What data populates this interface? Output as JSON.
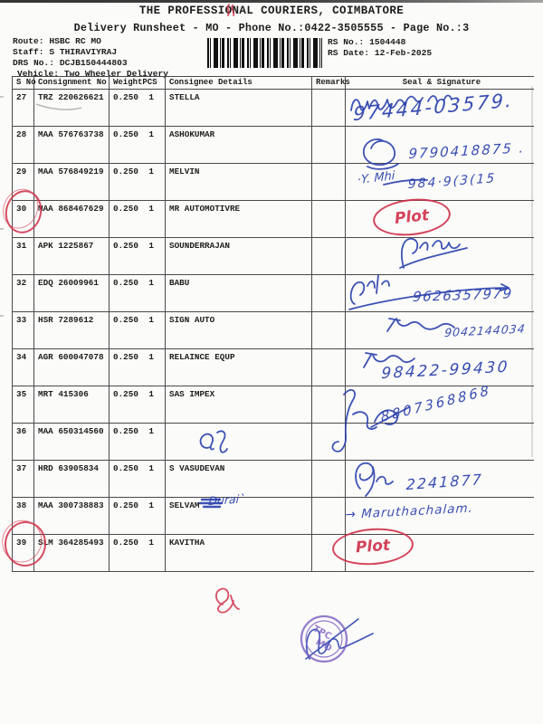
{
  "document": {
    "title": "THE PROFESSIONAL COURIERS, COIMBATORE",
    "subtitle": "Delivery Runsheet - MO - Phone No.:0422-3505555 - Page No.:3",
    "info_left": [
      {
        "label": "Route:",
        "value": "HSBC RC MO"
      },
      {
        "label": "Staff:",
        "value": "S THIRAVIYRAJ"
      },
      {
        "label": "DRS No.:",
        "value": "DCJB150444803"
      },
      {
        "label": "Vehicle:",
        "value": "Two Wheeler Delivery"
      }
    ],
    "info_right": [
      {
        "label": "RS No.:",
        "value": "1504448"
      },
      {
        "label": "RS Date:",
        "value": "12-Feb-2025"
      }
    ],
    "barcode_icon": "code128-barcode"
  },
  "table": {
    "columns": {
      "sno": "S No",
      "consignment": "Consignment No",
      "weight": "Weight",
      "pcs": "PCS",
      "consignee": "Consignee Details",
      "remarks": "Remarks",
      "seal": "Seal & Signature"
    },
    "rows": [
      {
        "sno": "27",
        "consignment": "TRZ 220626621",
        "weight": "0.250",
        "pcs": "1",
        "consignee": "STELLA",
        "remarks": ""
      },
      {
        "sno": "28",
        "consignment": "MAA 576763738",
        "weight": "0.250",
        "pcs": "1",
        "consignee": "ASHOKUMAR",
        "remarks": ""
      },
      {
        "sno": "29",
        "consignment": "MAA 576849219",
        "weight": "0.250",
        "pcs": "1",
        "consignee": "MELVIN",
        "remarks": ""
      },
      {
        "sno": "30",
        "consignment": "MAA 868467629",
        "weight": "0.250",
        "pcs": "1",
        "consignee": "MR AUTOMOTIVRE",
        "remarks": ""
      },
      {
        "sno": "31",
        "consignment": "APK 1225867",
        "weight": "0.250",
        "pcs": "1",
        "consignee": "SOUNDERRAJAN",
        "remarks": ""
      },
      {
        "sno": "32",
        "consignment": "EDQ 26009961",
        "weight": "0.250",
        "pcs": "1",
        "consignee": "BABU",
        "remarks": ""
      },
      {
        "sno": "33",
        "consignment": "HSR 7289612",
        "weight": "0.250",
        "pcs": "1",
        "consignee": "SIGN AUTO",
        "remarks": ""
      },
      {
        "sno": "34",
        "consignment": "AGR 600047078",
        "weight": "0.250",
        "pcs": "1",
        "consignee": "RELAINCE EQUP",
        "remarks": ""
      },
      {
        "sno": "35",
        "consignment": "MRT 415306",
        "weight": "0.250",
        "pcs": "1",
        "consignee": "SAS IMPEX",
        "remarks": ""
      },
      {
        "sno": "36",
        "consignment": "MAA 650314560",
        "weight": "0.250",
        "pcs": "1",
        "consignee": "",
        "remarks": ""
      },
      {
        "sno": "37",
        "consignment": "HRD 63905834",
        "weight": "0.250",
        "pcs": "1",
        "consignee": "S VASUDEVAN",
        "remarks": ""
      },
      {
        "sno": "38",
        "consignment": "MAA 300738883",
        "weight": "0.250",
        "pcs": "1",
        "consignee": "SELVAM",
        "remarks": ""
      },
      {
        "sno": "39",
        "consignment": "SLM 364285493",
        "weight": "0.250",
        "pcs": "1",
        "consignee": "KAVITHA",
        "remarks": ""
      }
    ]
  },
  "handwriting": {
    "row27_phone": "97444-03579.",
    "row28_phone": "9790418875 .",
    "row29_name": "·Y. Mhi",
    "row29_phone": "984·9(3(15",
    "row30_mark": "Plot",
    "row32_phone": "9626357979",
    "row33_phone": "9042144034",
    "row34_phone": "98422-99430",
    "row35_phone": "8807368868",
    "row37_phone": "2241877",
    "row38_consignee_note": "Durai`",
    "row38_note": "→ Maruthachalam.",
    "row39_mark": "Plot"
  },
  "stamp": {
    "line1": "TPC",
    "line2": "MO"
  },
  "colors": {
    "ink_blue": "#2940ad",
    "pen_red": "#cf3049",
    "stamp_purple": "#7a5ec2",
    "print_black": "#1d1d1d"
  }
}
